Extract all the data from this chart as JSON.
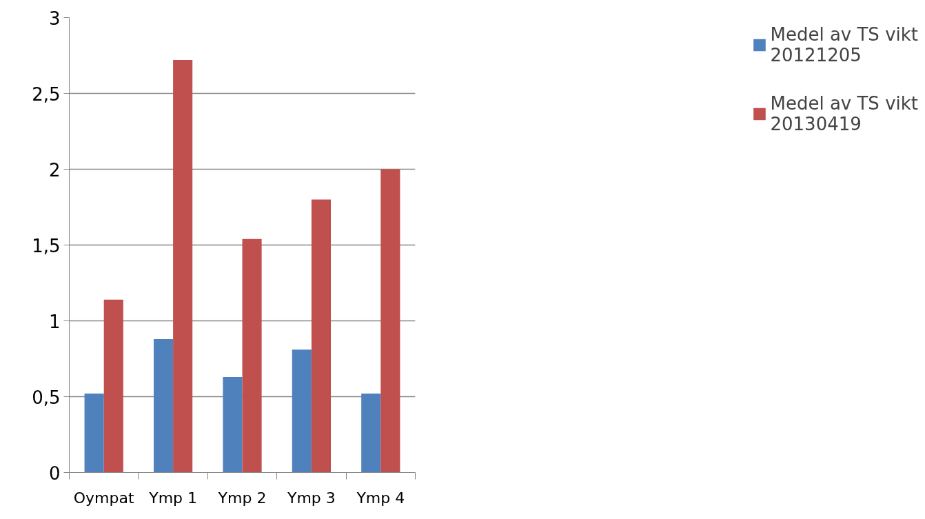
{
  "chart_data": {
    "type": "bar",
    "categories": [
      "Oympat",
      "Ymp 1",
      "Ymp 2",
      "Ymp 3",
      "Ymp 4"
    ],
    "series": [
      {
        "name": "Medel av TS vikt 20121205",
        "color": "#4f81bd",
        "values": [
          0.52,
          0.88,
          0.63,
          0.81,
          0.52
        ]
      },
      {
        "name": "Medel av TS vikt 20130419",
        "color": "#c0504d",
        "values": [
          1.14,
          2.72,
          1.54,
          1.8,
          2.0
        ]
      }
    ],
    "ylim": [
      0,
      3
    ],
    "yticks": [
      0,
      {
        "value": 0.5,
        "label": "0,5"
      },
      1,
      {
        "value": 1.5,
        "label": "1,5"
      },
      2,
      {
        "value": 2.5,
        "label": "2,5"
      },
      3
    ],
    "grid": "y",
    "legend": "right"
  }
}
